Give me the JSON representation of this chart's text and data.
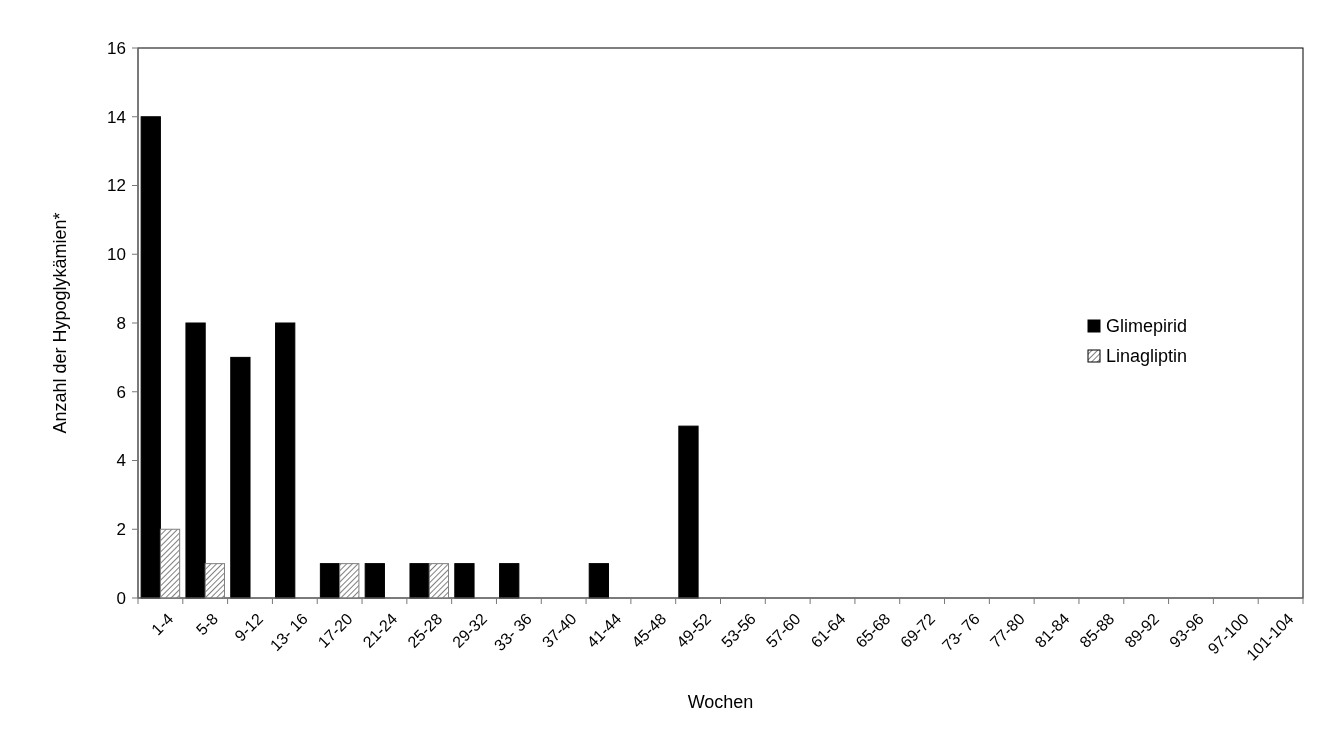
{
  "chart_data": {
    "type": "bar",
    "xlabel": "Wochen",
    "ylabel": "Anzahl der Hypoglykämien*",
    "categories": [
      "1-4",
      "5-8",
      "9-12",
      "13- 16",
      "17-20",
      "21-24",
      "25-28",
      "29-32",
      "33- 36",
      "37-40",
      "41-44",
      "45-48",
      "49-52",
      "53-56",
      "57-60",
      "61-64",
      "65-68",
      "69-72",
      "73- 76",
      "77-80",
      "81-84",
      "85-88",
      "89-92",
      "93-96",
      "97-100",
      "101-104"
    ],
    "series": [
      {
        "name": "Glimepirid",
        "color": "#000000",
        "values": [
          14,
          8,
          7,
          8,
          1,
          1,
          1,
          1,
          1,
          0,
          1,
          0,
          5,
          0,
          0,
          0,
          0,
          0,
          0,
          0,
          0,
          0,
          0,
          0,
          0,
          0
        ]
      },
      {
        "name": "Linagliptin",
        "color": "#808080",
        "values": [
          2,
          1,
          0,
          0,
          1,
          0,
          1,
          0,
          0,
          0,
          0,
          0,
          0,
          0,
          0,
          0,
          0,
          0,
          0,
          0,
          0,
          0,
          0,
          0,
          0,
          0
        ]
      }
    ],
    "ylim": [
      0,
      16
    ],
    "yticks": [
      0,
      2,
      4,
      6,
      8,
      10,
      12,
      14,
      16
    ],
    "legend": "right"
  }
}
